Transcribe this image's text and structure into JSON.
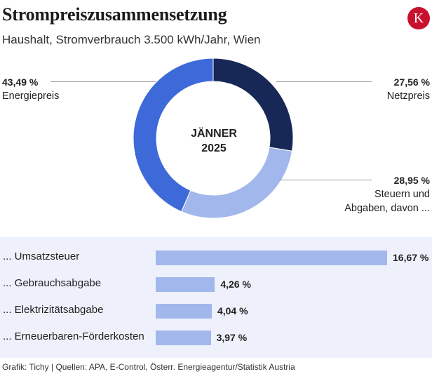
{
  "header": {
    "title": "Strompreiszusammensetzung",
    "subtitle": "Haushalt, Stromverbrauch 3.500 kWh/Jahr, Wien",
    "logo_letter": "K"
  },
  "donut": {
    "center_line1": "JÄNNER",
    "center_line2": "2025"
  },
  "labels": {
    "netz_value": "27,56 %",
    "netz_label": "Netzpreis",
    "steuer_value": "28,95 %",
    "steuer_label1": "Steuern und",
    "steuer_label2": "Abgaben, davon ...",
    "energie_value": "43,49 %",
    "energie_label": "Energiepreis"
  },
  "breakdown": [
    {
      "label": "... Umsatzsteuer",
      "value_text": "16,67 %"
    },
    {
      "label": "... Gebrauchsabgabe",
      "value_text": "4,26 %"
    },
    {
      "label": "... Elektrizitätsabgabe",
      "value_text": "4,04 %"
    },
    {
      "label": "... Erneuerbaren-Förderkosten",
      "value_text": "3,97 %"
    }
  ],
  "footer": "Grafik: Tichy | Quellen: APA, E-Control, Österr. Energieagentur/Statistik Austria",
  "colors": {
    "netzpreis": "#172856",
    "steuern": "#a2b8ec",
    "energiepreis": "#3d6ad8",
    "panel_bg": "#eef1fb",
    "logo_red": "#c8102e"
  },
  "chart_data": [
    {
      "type": "pie",
      "title": "",
      "series": [
        {
          "name": "Netzpreis",
          "value": 27.56
        },
        {
          "name": "Steuern und Abgaben",
          "value": 28.95
        },
        {
          "name": "Energiepreis",
          "value": 43.49
        }
      ]
    },
    {
      "type": "bar",
      "orientation": "horizontal",
      "categories": [
        "Umsatzsteuer",
        "Gebrauchsabgabe",
        "Elektrizitätsabgabe",
        "Erneuerbaren-Förderkosten"
      ],
      "values": [
        16.67,
        4.26,
        4.04,
        3.97
      ],
      "unit": "%"
    }
  ]
}
